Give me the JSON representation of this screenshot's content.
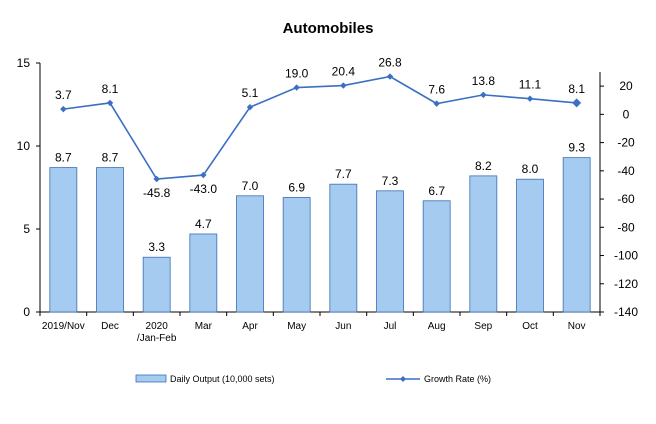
{
  "chart_data": {
    "type": "bar",
    "title": "Automobiles",
    "categories": [
      "2019/Nov",
      "Dec",
      "2020\n/Jan-Feb",
      "Mar",
      "Apr",
      "May",
      "Jun",
      "Jul",
      "Aug",
      "Sep",
      "Oct",
      "Nov"
    ],
    "series": [
      {
        "name": "Daily Output (10,000 sets)",
        "type": "bar",
        "axis": "left",
        "values": [
          8.7,
          8.7,
          3.3,
          4.7,
          7.0,
          6.9,
          7.7,
          7.3,
          6.7,
          8.2,
          8.0,
          9.3
        ],
        "labels": [
          "8.7",
          "8.7",
          "3.3",
          "4.7",
          "7.0",
          "6.9",
          "7.7",
          "7.3",
          "6.7",
          "8.2",
          "8.0",
          "9.3"
        ],
        "color": "#A6CBF0"
      },
      {
        "name": "Growth Rate (%)",
        "type": "line",
        "axis": "right",
        "values": [
          3.7,
          8.1,
          -45.8,
          -43.0,
          5.1,
          19.0,
          20.4,
          26.8,
          7.6,
          13.8,
          11.1,
          8.1
        ],
        "labels": [
          "3.7",
          "8.1",
          "-45.8",
          "-43.0",
          "5.1",
          "19.0",
          "20.4",
          "26.8",
          "7.6",
          "13.8",
          "11.1",
          "8.1"
        ],
        "color": "#3A6FC4"
      }
    ],
    "ylim_left": [
      0,
      15
    ],
    "yticks_left": [
      0,
      5,
      10,
      15
    ],
    "ylim_right": [
      -140,
      30
    ],
    "yticks_right": [
      -140,
      -120,
      -100,
      -80,
      -60,
      -40,
      -20,
      0,
      20
    ],
    "legend_position": "bottom",
    "grid": false
  }
}
